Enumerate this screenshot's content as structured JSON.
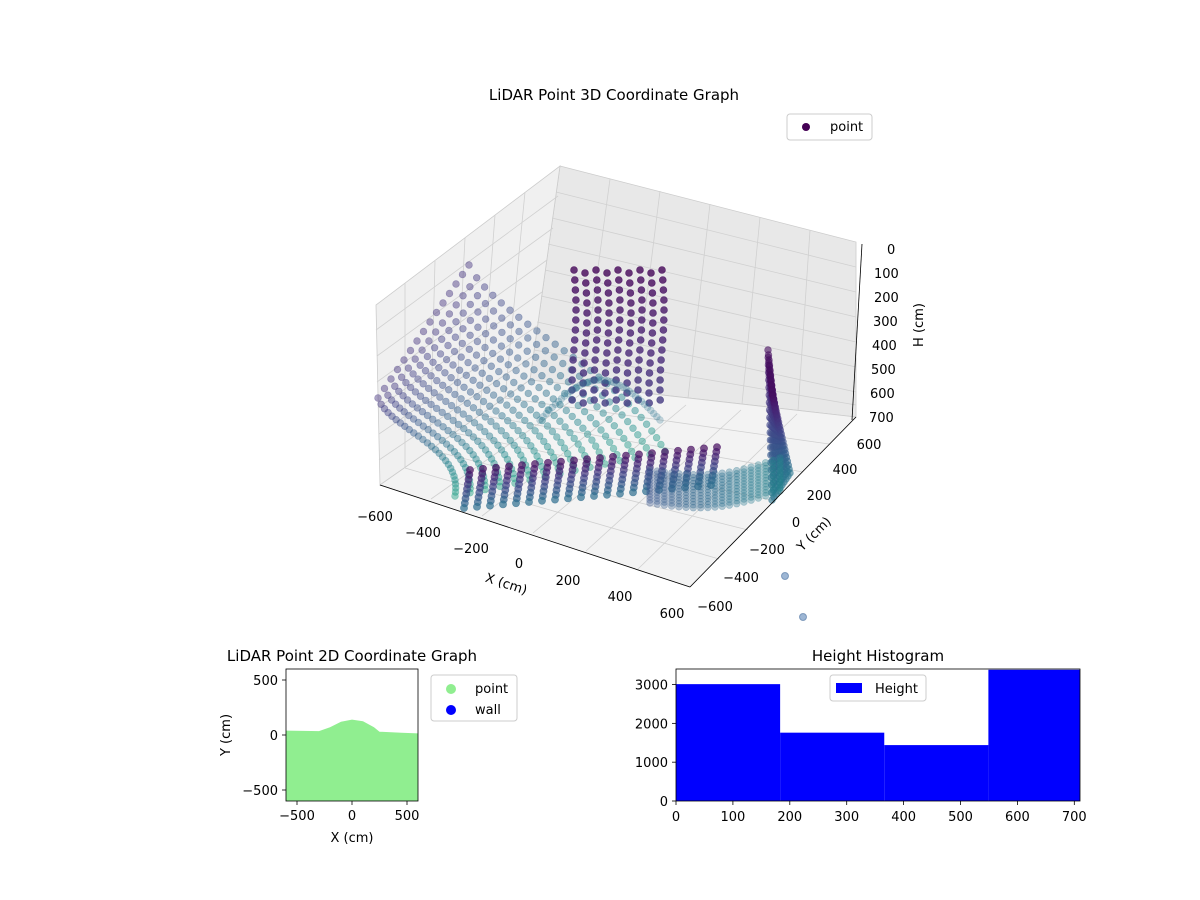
{
  "chart_data": [
    {
      "type": "scatter",
      "subtype": "3d",
      "title": "LiDAR Point 3D Coordinate Graph",
      "xlabel": "X (cm)",
      "ylabel": "Y (cm)",
      "zlabel": "H (cm)",
      "xlim": [
        -600,
        600
      ],
      "ylim": [
        -600,
        600
      ],
      "zlim": [
        0,
        700
      ],
      "z_inverted": true,
      "x_ticks": [
        "−600",
        "−400",
        "−200",
        "0",
        "200",
        "400",
        "600"
      ],
      "y_ticks": [
        "−600",
        "−400",
        "−200",
        "0",
        "200",
        "400",
        "600"
      ],
      "z_ticks": [
        "0",
        "100",
        "200",
        "300",
        "400",
        "500",
        "600",
        "700"
      ],
      "legend": [
        {
          "label": "point",
          "color": "#440154"
        }
      ],
      "legend_position": "top-right",
      "colormap": "viridis",
      "grid": true,
      "outlier_points": [
        {
          "x": 560,
          "y": -520,
          "z": 720
        },
        {
          "x": 620,
          "y": -640,
          "z": 740
        }
      ]
    },
    {
      "type": "scatter",
      "title": "LiDAR Point 2D Coordinate Graph",
      "xlabel": "X (cm)",
      "ylabel": "Y (cm)",
      "xlim": [
        -600,
        600
      ],
      "ylim": [
        -600,
        600
      ],
      "x_ticks": [
        "−500",
        "0",
        "500"
      ],
      "y_ticks": [
        "−500",
        "0",
        "500"
      ],
      "series": [
        {
          "name": "point",
          "color": "#90ee90"
        },
        {
          "name": "wall",
          "color": "#0000ff"
        }
      ],
      "point_region_top": [
        {
          "x": -600,
          "y": 40
        },
        {
          "x": -300,
          "y": 35
        },
        {
          "x": -200,
          "y": 70
        },
        {
          "x": -100,
          "y": 120
        },
        {
          "x": 0,
          "y": 140
        },
        {
          "x": 100,
          "y": 125
        },
        {
          "x": 200,
          "y": 70
        },
        {
          "x": 250,
          "y": 30
        },
        {
          "x": 450,
          "y": 20
        },
        {
          "x": 600,
          "y": 15
        }
      ],
      "legend_position": "outside-right"
    },
    {
      "type": "bar",
      "subtype": "histogram",
      "title": "Height Histogram",
      "xlim": [
        0,
        710
      ],
      "ylim": [
        0,
        3400
      ],
      "x_ticks": [
        "0",
        "100",
        "200",
        "300",
        "400",
        "500",
        "600",
        "700"
      ],
      "y_ticks": [
        "0",
        "1000",
        "2000",
        "3000"
      ],
      "bins": [
        {
          "start": 0,
          "end": 183,
          "count": 3010
        },
        {
          "start": 183,
          "end": 366,
          "count": 1760
        },
        {
          "start": 366,
          "end": 549,
          "count": 1440
        },
        {
          "start": 549,
          "end": 710,
          "count": 3380
        }
      ],
      "color": "#0000ff",
      "legend": [
        {
          "label": "Height",
          "color": "#0000ff"
        }
      ],
      "legend_position": "top-center"
    }
  ]
}
